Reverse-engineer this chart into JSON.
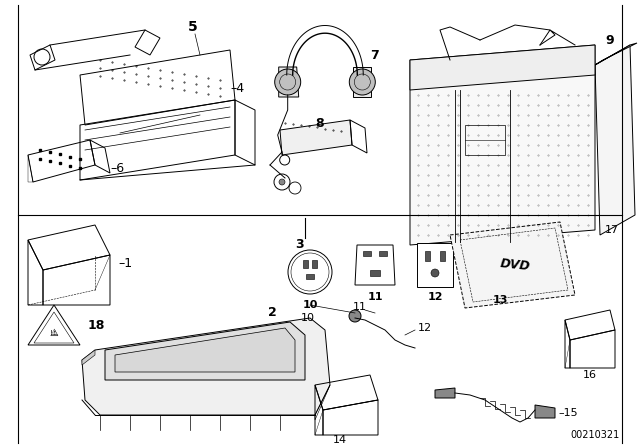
{
  "background_color": "#ffffff",
  "line_color": "#000000",
  "text_color": "#000000",
  "part_number": "00210321",
  "fig_width": 6.4,
  "fig_height": 4.48,
  "dpi": 100
}
